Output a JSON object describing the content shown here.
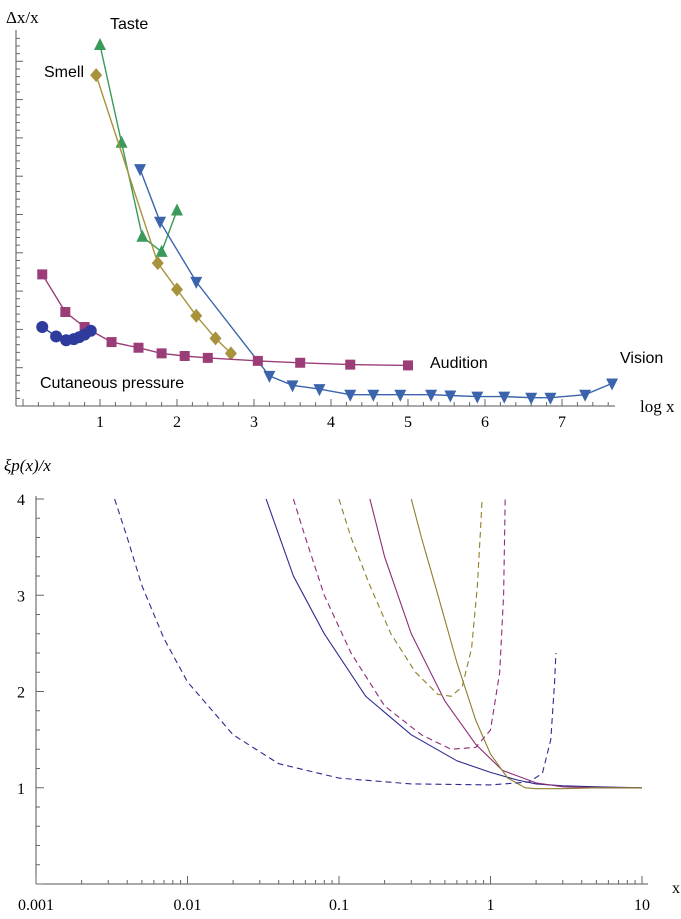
{
  "chart_data": [
    {
      "type": "line",
      "ylabel": "Δx/x",
      "xlabel": "log x",
      "xlim": [
        0,
        7.7
      ],
      "ylim": [
        0,
        1
      ],
      "grid": false,
      "x_ticks": [
        "1",
        "2",
        "3",
        "4",
        "5",
        "6",
        "7"
      ],
      "series": [
        {
          "name": "Taste",
          "marker": "triangle-up",
          "color": "#3a9a5a",
          "x": [
            1.0,
            1.28,
            1.55,
            1.8,
            2.0
          ],
          "y": [
            0.96,
            0.7,
            0.45,
            0.41,
            0.52
          ]
        },
        {
          "name": "Smell",
          "marker": "diamond",
          "color": "#a8933c",
          "x": [
            0.95,
            1.75,
            2.0,
            2.25,
            2.5,
            2.7
          ],
          "y": [
            0.88,
            0.38,
            0.31,
            0.24,
            0.18,
            0.14
          ]
        },
        {
          "name": "Vision",
          "marker": "triangle-down",
          "color": "#3b64ad",
          "x": [
            1.52,
            1.78,
            2.25,
            3.2,
            3.5,
            3.85,
            4.25,
            4.55,
            4.9,
            5.3,
            5.55,
            5.9,
            6.25,
            6.6,
            6.85,
            7.3,
            7.65
          ],
          "y": [
            0.63,
            0.49,
            0.33,
            0.08,
            0.055,
            0.045,
            0.03,
            0.03,
            0.03,
            0.03,
            0.028,
            0.025,
            0.025,
            0.022,
            0.022,
            0.03,
            0.06
          ]
        },
        {
          "name": "Audition",
          "marker": "square",
          "color": "#9b3e78",
          "x": [
            0.25,
            0.55,
            0.8,
            1.15,
            1.5,
            1.8,
            2.1,
            2.4,
            3.05,
            3.6,
            4.25,
            5.0
          ],
          "y": [
            0.35,
            0.25,
            0.21,
            0.17,
            0.155,
            0.14,
            0.133,
            0.128,
            0.12,
            0.115,
            0.11,
            0.108
          ]
        },
        {
          "name": "Cutaneous pressure",
          "marker": "circle",
          "color": "#2e3a9c",
          "x": [
            0.25,
            0.43,
            0.56,
            0.66,
            0.73,
            0.8,
            0.88
          ],
          "y": [
            0.21,
            0.185,
            0.175,
            0.178,
            0.183,
            0.19,
            0.2
          ]
        }
      ],
      "annotations": [
        "Taste",
        "Smell",
        "Audition",
        "Vision",
        "Cutaneous pressure"
      ]
    },
    {
      "type": "line",
      "ylabel": "ξp(x)/x",
      "xlabel": "x",
      "xscale": "log",
      "xlim": [
        0.001,
        10
      ],
      "ylim": [
        0,
        4
      ],
      "grid": false,
      "x_ticks": [
        "0.001",
        "0.01",
        "0.1",
        "1",
        "10"
      ],
      "y_ticks": [
        "1",
        "2",
        "3",
        "4"
      ],
      "series": [
        {
          "color": "#2e2b8f",
          "dash": false,
          "x": [
            0.033,
            0.05,
            0.08,
            0.15,
            0.3,
            0.6,
            1,
            1.5,
            2,
            3,
            5,
            10
          ],
          "y": [
            4.0,
            3.2,
            2.6,
            1.95,
            1.55,
            1.28,
            1.16,
            1.08,
            1.04,
            1.02,
            1.01,
            1.0
          ]
        },
        {
          "color": "#8e2b78",
          "dash": false,
          "x": [
            0.16,
            0.2,
            0.3,
            0.5,
            0.8,
            1.2,
            2,
            3,
            5,
            10
          ],
          "y": [
            4.0,
            3.4,
            2.6,
            1.9,
            1.45,
            1.18,
            1.05,
            1.01,
            1.0,
            1.0
          ]
        },
        {
          "color": "#8f7f2a",
          "dash": false,
          "x": [
            0.3,
            0.35,
            0.45,
            0.6,
            0.8,
            1.0,
            1.3,
            1.7,
            2,
            3,
            5,
            10
          ],
          "y": [
            4.0,
            3.6,
            3.0,
            2.3,
            1.7,
            1.35,
            1.1,
            1.0,
            0.99,
            0.99,
            1.0,
            1.0
          ]
        },
        {
          "color": "#2e2b8f",
          "dash": true,
          "x": [
            0.0033,
            0.004,
            0.005,
            0.007,
            0.01,
            0.02,
            0.04,
            0.1,
            0.3,
            1,
            1.8,
            2.2,
            2.5,
            2.65,
            2.7
          ],
          "y": [
            4.0,
            3.6,
            3.1,
            2.55,
            2.1,
            1.55,
            1.25,
            1.1,
            1.04,
            1.03,
            1.06,
            1.15,
            1.5,
            2.1,
            2.4
          ]
        },
        {
          "color": "#8e2b78",
          "dash": true,
          "x": [
            0.05,
            0.06,
            0.08,
            0.12,
            0.2,
            0.35,
            0.55,
            0.8,
            1.0,
            1.15,
            1.22,
            1.25
          ],
          "y": [
            4.0,
            3.6,
            3.0,
            2.4,
            1.85,
            1.55,
            1.4,
            1.42,
            1.6,
            2.2,
            3.0,
            4.0
          ]
        },
        {
          "color": "#8f7f2a",
          "dash": true,
          "x": [
            0.1,
            0.12,
            0.16,
            0.22,
            0.32,
            0.45,
            0.55,
            0.65,
            0.75,
            0.82,
            0.86,
            0.88
          ],
          "y": [
            4.0,
            3.6,
            3.1,
            2.6,
            2.2,
            1.97,
            1.95,
            2.05,
            2.45,
            3.1,
            3.7,
            4.0
          ]
        }
      ]
    }
  ]
}
